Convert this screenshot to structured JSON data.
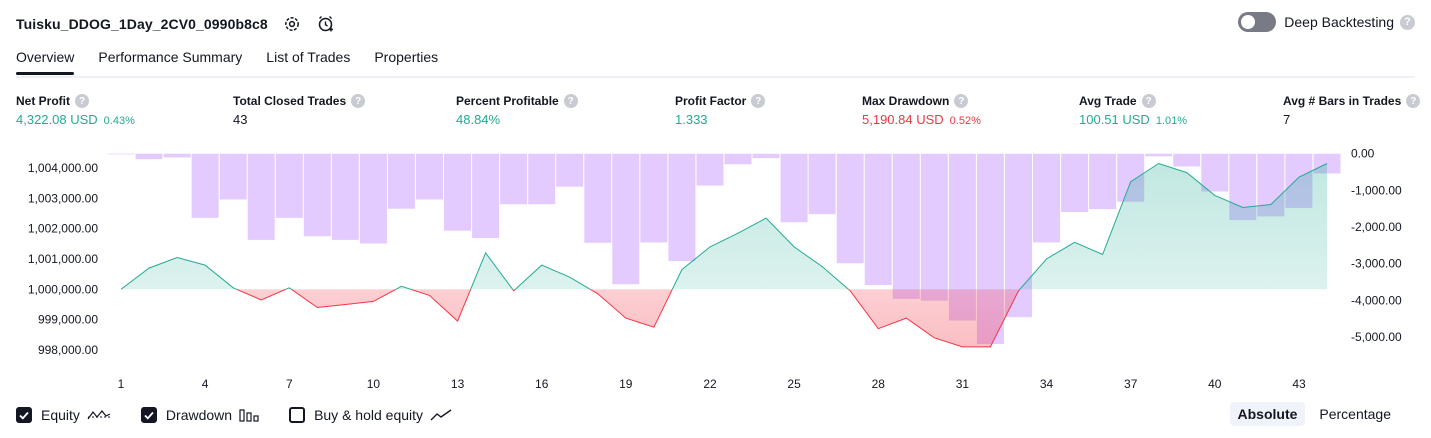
{
  "header": {
    "strategy_name": "Tuisku_DDOG_1Day_2CV0_0990b8c8",
    "deep_backtesting_label": "Deep Backtesting",
    "deep_backtesting_enabled": false,
    "help_glyph": "?"
  },
  "tabs": [
    {
      "label": "Overview",
      "active": true
    },
    {
      "label": "Performance Summary",
      "active": false
    },
    {
      "label": "List of Trades",
      "active": false
    },
    {
      "label": "Properties",
      "active": false
    }
  ],
  "stats": [
    {
      "label": "Net Profit",
      "value": "4,322.08 USD",
      "pct": "0.43%",
      "color": "green"
    },
    {
      "label": "Total Closed Trades",
      "value": "43",
      "pct": "",
      "color": "neutral"
    },
    {
      "label": "Percent Profitable",
      "value": "48.84%",
      "pct": "",
      "color": "green"
    },
    {
      "label": "Profit Factor",
      "value": "1.333",
      "pct": "",
      "color": "green"
    },
    {
      "label": "Max Drawdown",
      "value": "5,190.84 USD",
      "pct": "0.52%",
      "color": "red"
    },
    {
      "label": "Avg Trade",
      "value": "100.51 USD",
      "pct": "1.01%",
      "color": "green"
    },
    {
      "label": "Avg # Bars in Trades",
      "value": "7",
      "pct": "",
      "color": "neutral"
    }
  ],
  "chart_data": {
    "type": "area",
    "left_axis": {
      "ticks": [
        "1,004,000.00",
        "1,003,000.00",
        "1,002,000.00",
        "1,001,000.00",
        "1,000,000.00",
        "999,000.00",
        "998,000.00"
      ],
      "range": [
        997700,
        1004300
      ]
    },
    "right_axis": {
      "ticks": [
        "0.00",
        "-1,000.00",
        "-2,000.00",
        "-3,000.00",
        "-4,000.00",
        "-5,000.00"
      ],
      "range": [
        -5900,
        100
      ]
    },
    "x_ticks": [
      "1",
      "4",
      "7",
      "10",
      "13",
      "16",
      "19",
      "22",
      "25",
      "28",
      "31",
      "34",
      "37",
      "40",
      "43"
    ],
    "x": [
      1,
      2,
      3,
      4,
      5,
      6,
      7,
      8,
      9,
      10,
      11,
      12,
      13,
      14,
      15,
      16,
      17,
      18,
      19,
      20,
      21,
      22,
      23,
      24,
      25,
      26,
      27,
      28,
      29,
      30,
      31,
      32,
      33,
      34,
      35,
      36,
      37,
      38,
      39,
      40,
      41,
      42,
      43,
      44
    ],
    "series": [
      {
        "name": "Equity",
        "values": [
          1000000,
          1000700,
          1001050,
          1000800,
          1000050,
          999650,
          1000050,
          999400,
          999500,
          999600,
          1000100,
          999800,
          998950,
          1001200,
          999950,
          1000800,
          1000400,
          999850,
          999050,
          998750,
          1000650,
          1001400,
          1001850,
          1002350,
          1001400,
          1000750,
          999950,
          998700,
          999050,
          998400,
          998100,
          998100,
          999950,
          1001000,
          1001550,
          1001150,
          1003550,
          1004150,
          1003850,
          1003100,
          1002700,
          1002800,
          1003700,
          1004150
        ]
      },
      {
        "name": "Drawdown",
        "values": [
          -20,
          -150,
          -100,
          -1750,
          -1250,
          -2350,
          -1750,
          -2250,
          -2350,
          -2450,
          -1500,
          -1250,
          -2100,
          -2300,
          -1380,
          -1380,
          -900,
          -2430,
          -3560,
          -2420,
          -2930,
          -870,
          -290,
          -120,
          -1870,
          -1650,
          -2990,
          -3580,
          -3960,
          -4010,
          -4550,
          -5190,
          -4460,
          -2420,
          -1590,
          -1510,
          -1310,
          -70,
          -350,
          -1030,
          -1810,
          -1710,
          -1480,
          -540
        ]
      }
    ],
    "colors": {
      "positive_line": "#22ab94",
      "negative_line": "#f23645",
      "positive_fill": "#22ab94",
      "negative_fill": "#f23645",
      "drawdown_bar": "#e1c8ff"
    }
  },
  "footer": {
    "checkboxes": [
      {
        "label": "Equity",
        "checked": true,
        "icon": "equity-wave-icon"
      },
      {
        "label": "Drawdown",
        "checked": true,
        "icon": "drawdown-bars-icon"
      },
      {
        "label": "Buy & hold equity",
        "checked": false,
        "icon": "buyhold-line-icon"
      }
    ],
    "mode_buttons": [
      {
        "label": "Absolute",
        "active": true
      },
      {
        "label": "Percentage",
        "active": false
      }
    ]
  }
}
